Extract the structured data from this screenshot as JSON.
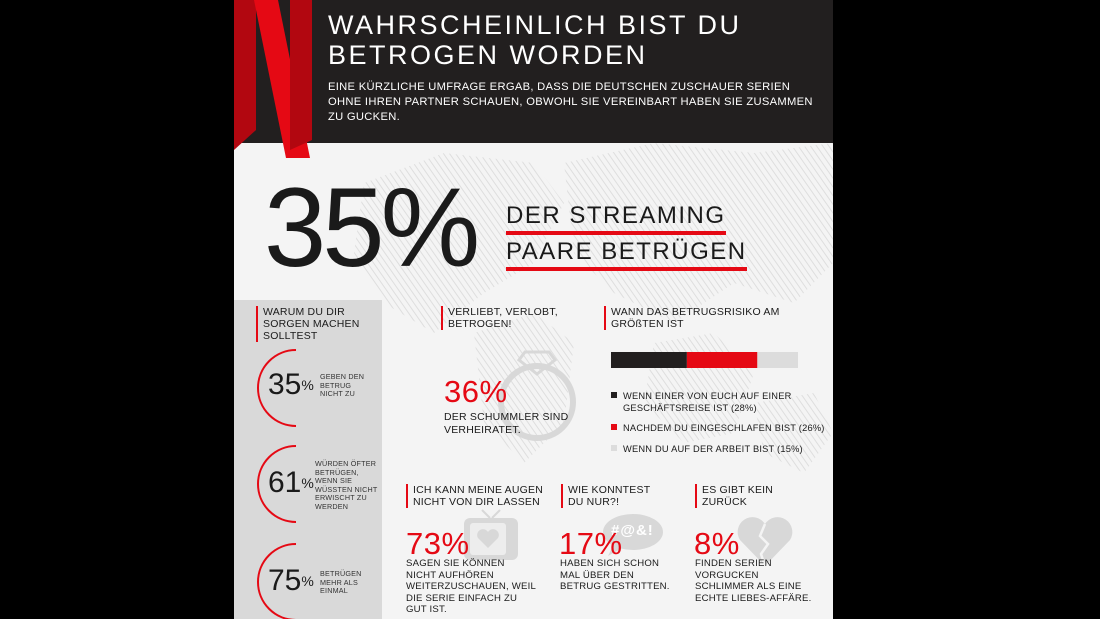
{
  "header": {
    "title_line1": "WAHRSCHEINLICH BIST DU",
    "title_line2": "BETROGEN WORDEN",
    "subtitle": "EINE KÜRZLICHE UMFRAGE ERGAB, DASS DIE DEUTSCHEN ZUSCHAUER SERIEN OHNE IHREN PARTNER SCHAUEN, OBWOHL SIE VEREINBART HABEN SIE ZUSAMMEN ZU GUCKEN."
  },
  "headline": {
    "percent": "35%",
    "line1": "DER STREAMING",
    "line2": "PAARE BETRÜGEN"
  },
  "sidebar": {
    "heading": "WARUM DU DIR SORGEN MACHEN SOLLTEST",
    "stats": [
      {
        "value": "35",
        "unit": "%",
        "label": "GEBEN DEN BETRUG NICHT ZU"
      },
      {
        "value": "61",
        "unit": "%",
        "label": "WÜRDEN ÖFTER BETRÜGEN, WENN SIE WÜSSTEN NICHT ERWISCHT ZU WERDEN"
      },
      {
        "value": "75",
        "unit": "%",
        "label": "BETRÜGEN MEHR ALS EINMAL"
      }
    ]
  },
  "married": {
    "heading": "VERLIEBT, VERLOBT, BETROGEN!",
    "value": "36%",
    "text": "DER SCHUMMLER SIND VERHEIRATET."
  },
  "risk": {
    "heading": "WANN DAS BETRUGSRISIKO AM GRÖßTEN IST",
    "items": [
      {
        "label": "WENN EINER VON EUCH AUF EINER GESCHÄFTSREISE IST (28%)",
        "value": 28,
        "color": "#221f1f"
      },
      {
        "label": "NACHDEM DU EINGESCHLAFEN BIST (26%)",
        "value": 26,
        "color": "#e50914"
      },
      {
        "label": "WENN DU AUF DER ARBEIT BIST (15%)",
        "value": 15,
        "color": "#dcdcdc"
      }
    ]
  },
  "eyes": {
    "heading": "ICH KANN MEINE AUGEN NICHT VON DIR LASSEN",
    "value": "73%",
    "text": "SAGEN SIE KÖNNEN NICHT AUFHÖREN WEITERZUSCHAUEN, WEIL DIE SERIE EINFACH ZU GUT IST."
  },
  "fight": {
    "heading": "WIE KONNTEST DU NUR?!",
    "value": "17%",
    "icon_text": "#@&!",
    "text": "HABEN SICH SCHON MAL ÜBER DEN BETRUG GESTRITTEN."
  },
  "noreturn": {
    "heading": "ES GIBT KEIN ZURÜCK",
    "value": "8%",
    "text": "FINDEN SERIEN VORGUCKEN SCHLIMMER ALS EINE ECHTE LIEBES-AFFÄRE."
  },
  "colors": {
    "accent": "#e50914",
    "dark": "#221f1f",
    "background": "#f4f4f4"
  }
}
